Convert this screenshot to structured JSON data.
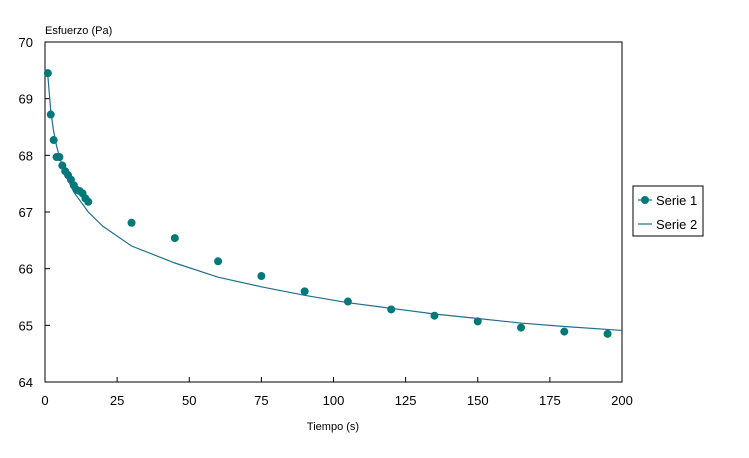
{
  "chart_data": {
    "type": "scatter",
    "ylabel": "Esfuerzo (Pa)",
    "xlabel": "Tiempo (s)",
    "xlim": [
      0,
      200
    ],
    "ylim": [
      64,
      70
    ],
    "x_ticks": [
      0,
      25,
      50,
      75,
      100,
      125,
      150,
      175,
      200
    ],
    "y_ticks": [
      64,
      65,
      66,
      67,
      68,
      69,
      70
    ],
    "grid": false,
    "legend_position": "right",
    "series": [
      {
        "name": "Serie 1",
        "style": "markers",
        "color": "#007a78",
        "points": [
          [
            1,
            69.45
          ],
          [
            2,
            68.72
          ],
          [
            3,
            68.27
          ],
          [
            4,
            67.97
          ],
          [
            5,
            67.97
          ],
          [
            6,
            67.82
          ],
          [
            7,
            67.72
          ],
          [
            8,
            67.65
          ],
          [
            9,
            67.57
          ],
          [
            10,
            67.47
          ],
          [
            11,
            67.39
          ],
          [
            12,
            67.37
          ],
          [
            13,
            67.33
          ],
          [
            14,
            67.24
          ],
          [
            15,
            67.18
          ],
          [
            30,
            66.81
          ],
          [
            45,
            66.54
          ],
          [
            60,
            66.13
          ],
          [
            75,
            65.87
          ],
          [
            90,
            65.6
          ],
          [
            105,
            65.42
          ],
          [
            120,
            65.28
          ],
          [
            135,
            65.17
          ],
          [
            150,
            65.07
          ],
          [
            165,
            64.96
          ],
          [
            180,
            64.89
          ],
          [
            195,
            64.85
          ]
        ]
      },
      {
        "name": "Serie 2",
        "style": "line",
        "color": "#1f6f8b",
        "points": [
          [
            1,
            69.4
          ],
          [
            2,
            68.78
          ],
          [
            3,
            68.42
          ],
          [
            4,
            68.17
          ],
          [
            5,
            67.97
          ],
          [
            7,
            67.67
          ],
          [
            10,
            67.35
          ],
          [
            15,
            67.0
          ],
          [
            20,
            66.75
          ],
          [
            30,
            66.4
          ],
          [
            45,
            66.1
          ],
          [
            60,
            65.85
          ],
          [
            75,
            65.68
          ],
          [
            90,
            65.53
          ],
          [
            105,
            65.4
          ],
          [
            120,
            65.3
          ],
          [
            135,
            65.2
          ],
          [
            150,
            65.12
          ],
          [
            165,
            65.04
          ],
          [
            180,
            64.98
          ],
          [
            200,
            64.91
          ]
        ]
      }
    ]
  }
}
